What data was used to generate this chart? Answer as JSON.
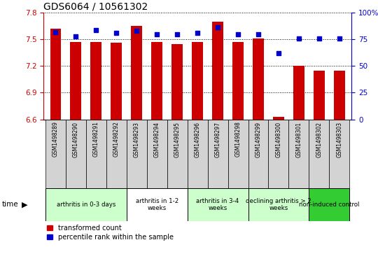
{
  "title": "GDS6064 / 10561302",
  "samples": [
    "GSM1498289",
    "GSM1498290",
    "GSM1498291",
    "GSM1498292",
    "GSM1498293",
    "GSM1498294",
    "GSM1498295",
    "GSM1498296",
    "GSM1498297",
    "GSM1498298",
    "GSM1498299",
    "GSM1498300",
    "GSM1498301",
    "GSM1498302",
    "GSM1498303"
  ],
  "bar_values": [
    7.62,
    7.47,
    7.47,
    7.46,
    7.65,
    7.47,
    7.45,
    7.47,
    7.7,
    7.47,
    7.51,
    6.63,
    7.2,
    7.15,
    7.15
  ],
  "dot_values": [
    82,
    78,
    84,
    81,
    83,
    80,
    80,
    81,
    86,
    80,
    80,
    62,
    76,
    76,
    76
  ],
  "bar_base": 6.6,
  "ylim_left": [
    6.6,
    7.8
  ],
  "ylim_right": [
    0,
    100
  ],
  "yticks_left": [
    6.6,
    6.9,
    7.2,
    7.5,
    7.8
  ],
  "yticks_right": [
    0,
    25,
    50,
    75,
    100
  ],
  "bar_color": "#cc0000",
  "dot_color": "#0000cc",
  "groups": [
    {
      "label": "arthritis in 0-3 days",
      "start": 0,
      "end": 4,
      "color": "#ccffcc"
    },
    {
      "label": "arthritis in 1-2\nweeks",
      "start": 4,
      "end": 7,
      "color": "#ffffff"
    },
    {
      "label": "arthritis in 3-4\nweeks",
      "start": 7,
      "end": 10,
      "color": "#ccffcc"
    },
    {
      "label": "declining arthritis > 2\nweeks",
      "start": 10,
      "end": 13,
      "color": "#ccffcc"
    },
    {
      "label": "non-induced control",
      "start": 13,
      "end": 15,
      "color": "#33cc33"
    }
  ],
  "legend_bar_label": "transformed count",
  "legend_dot_label": "percentile rank within the sample",
  "left_axis_color": "#cc0000",
  "right_axis_color": "#0000cc",
  "bg_color": "#ffffff"
}
